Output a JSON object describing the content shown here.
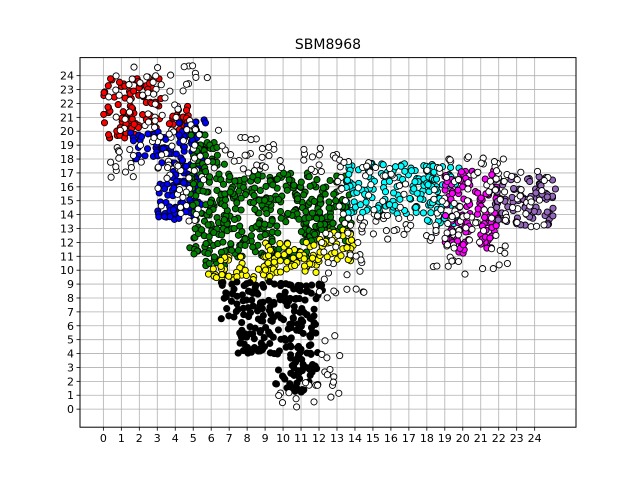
{
  "chart_data": {
    "type": "scatter",
    "title": "SBM8968",
    "xlabel": "",
    "ylabel": "",
    "xlim": [
      -1.3,
      26.3
    ],
    "ylim": [
      -1.3,
      25.3
    ],
    "xticks": [
      0,
      1,
      2,
      3,
      4,
      5,
      6,
      7,
      8,
      9,
      10,
      11,
      12,
      13,
      14,
      15,
      16,
      17,
      18,
      19,
      20,
      21,
      22,
      23,
      24
    ],
    "yticks": [
      0,
      1,
      2,
      3,
      4,
      5,
      6,
      7,
      8,
      9,
      10,
      11,
      12,
      13,
      14,
      15,
      16,
      17,
      18,
      19,
      20,
      21,
      22,
      23,
      24
    ],
    "grid": true,
    "legend": "none",
    "marker_edge_color": "#000000",
    "series": [
      {
        "color": "#ff0000",
        "regions": [
          [
            0.0,
            19.5,
            3.2,
            23.8
          ],
          [
            3.2,
            20.0,
            5.0,
            21.8
          ]
        ]
      },
      {
        "color": "#0000ff",
        "regions": [
          [
            1.5,
            18.0,
            3.5,
            20.0
          ],
          [
            3.0,
            13.6,
            5.5,
            19.0
          ],
          [
            4.2,
            19.0,
            5.8,
            21.0
          ]
        ]
      },
      {
        "color": "#008000",
        "regions": [
          [
            4.8,
            11.0,
            6.8,
            19.8
          ],
          [
            5.5,
            10.2,
            7.0,
            11.5
          ],
          [
            6.5,
            10.8,
            11.5,
            17.0
          ],
          [
            11.0,
            12.0,
            13.8,
            16.8
          ],
          [
            11.5,
            12.5,
            13.5,
            13.5
          ]
        ]
      },
      {
        "color": "#ffff00",
        "regions": [
          [
            5.8,
            9.3,
            9.5,
            11.0
          ],
          [
            9.0,
            9.5,
            12.2,
            12.0
          ],
          [
            12.0,
            10.5,
            14.0,
            13.0
          ]
        ]
      },
      {
        "color": "#000000",
        "regions": [
          [
            6.5,
            6.5,
            12.2,
            9.2
          ],
          [
            7.5,
            4.0,
            12.0,
            6.5
          ],
          [
            9.5,
            1.2,
            12.0,
            4.2
          ]
        ]
      },
      {
        "color": "#00ffff",
        "regions": [
          [
            13.5,
            14.0,
            18.5,
            17.8
          ],
          [
            18.0,
            13.0,
            19.8,
            17.5
          ]
        ]
      },
      {
        "color": "#ff00ff",
        "regions": [
          [
            19.0,
            11.2,
            22.0,
            17.2
          ]
        ]
      },
      {
        "color": "#9467bd",
        "regions": [
          [
            21.8,
            13.2,
            25.2,
            16.8
          ]
        ]
      },
      {
        "color": "#ffffff",
        "regions": [
          [
            0.2,
            16.5,
            5.8,
            24.8
          ],
          [
            5.0,
            17.0,
            9.5,
            20.2
          ],
          [
            9.0,
            17.0,
            13.0,
            18.8
          ],
          [
            12.0,
            8.0,
            14.5,
            13.5
          ],
          [
            13.0,
            12.5,
            17.0,
            18.0
          ],
          [
            15.0,
            12.0,
            21.0,
            14.0
          ],
          [
            18.0,
            9.5,
            22.5,
            18.2
          ],
          [
            22.0,
            13.0,
            24.8,
            17.2
          ],
          [
            9.5,
            0.0,
            12.0,
            2.0
          ],
          [
            12.0,
            0.5,
            13.2,
            5.5
          ],
          [
            3.0,
            13.5,
            5.5,
            16.0
          ]
        ]
      }
    ]
  }
}
